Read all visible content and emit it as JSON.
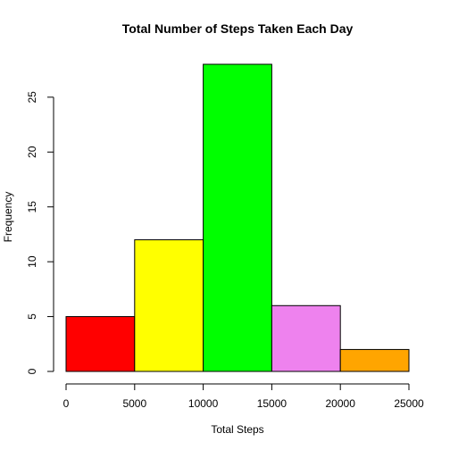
{
  "chart_data": {
    "type": "bar",
    "title": "Total Number of Steps Taken Each Day",
    "xlabel": "Total Steps",
    "ylabel": "Frequency",
    "bins": [
      {
        "from": 0,
        "to": 5000,
        "count": 5,
        "color": "#ff0000"
      },
      {
        "from": 5000,
        "to": 10000,
        "count": 12,
        "color": "#ffff00"
      },
      {
        "from": 10000,
        "to": 15000,
        "count": 28,
        "color": "#00ff00"
      },
      {
        "from": 15000,
        "to": 20000,
        "count": 6,
        "color": "#ee82ee"
      },
      {
        "from": 20000,
        "to": 25000,
        "count": 2,
        "color": "#ffa500"
      }
    ],
    "xticks": [
      0,
      5000,
      10000,
      15000,
      20000,
      25000
    ],
    "yticks": [
      0,
      5,
      10,
      15,
      20,
      25
    ],
    "xlim": [
      0,
      25000
    ],
    "ylim": [
      0,
      28
    ],
    "grid": false,
    "legend": "none"
  }
}
